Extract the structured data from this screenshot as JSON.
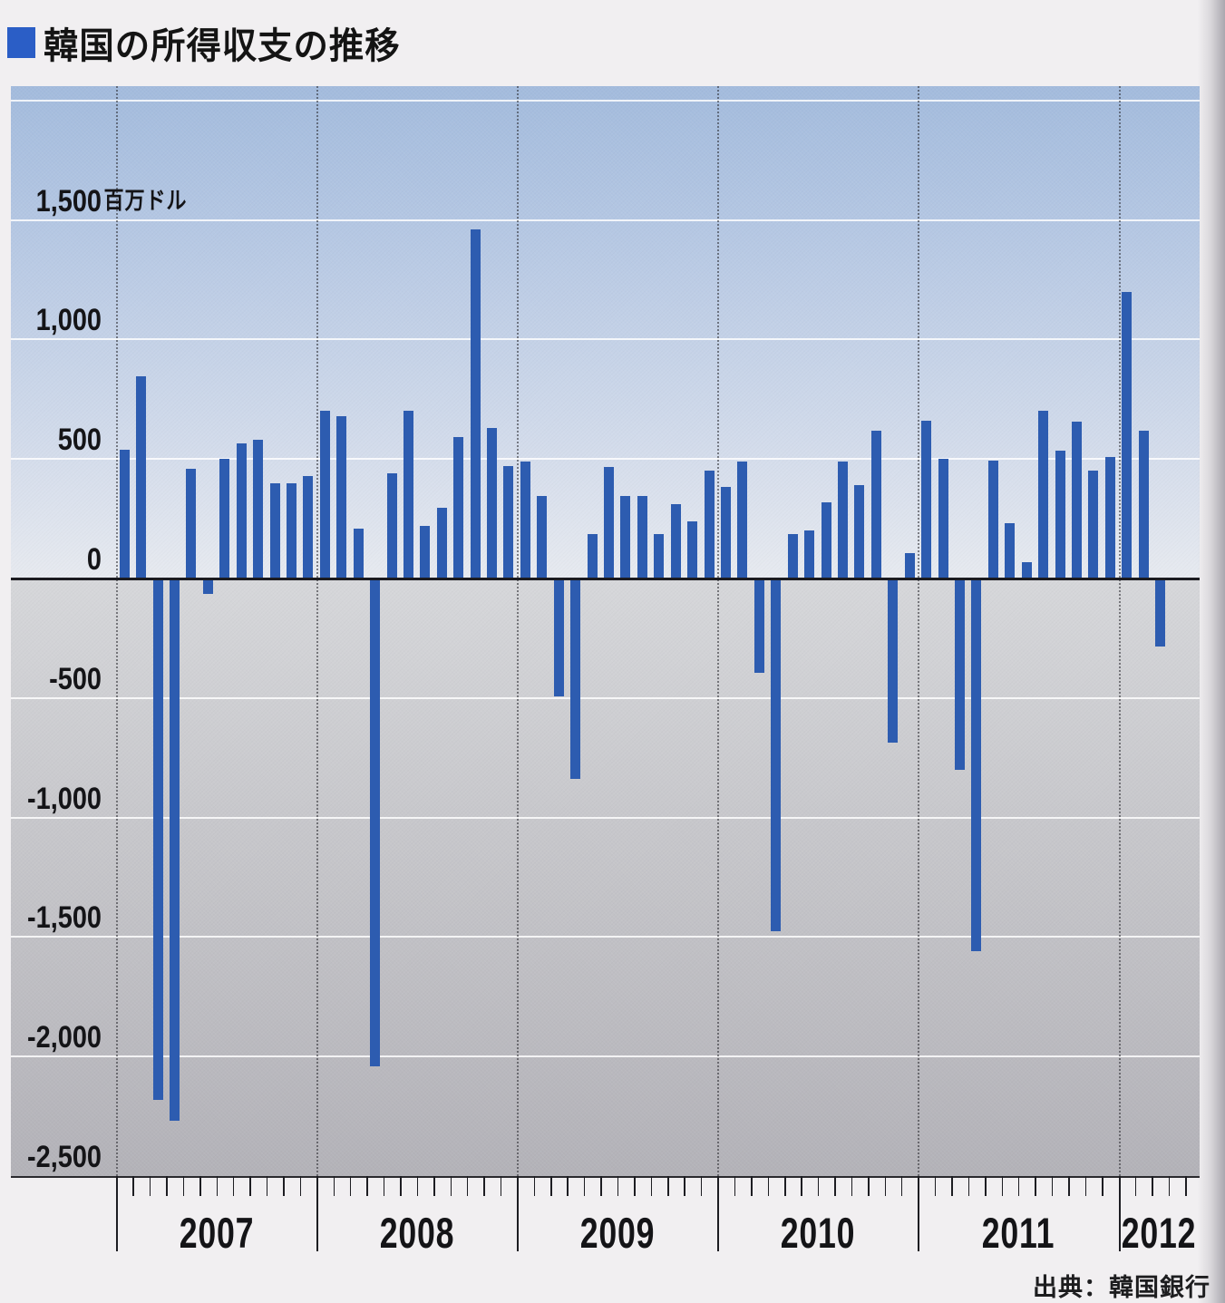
{
  "header": {
    "title": "韓国の所得収支の推移"
  },
  "footer": {
    "source": "出典：韓国銀行"
  },
  "chart_data": {
    "type": "bar",
    "title": "韓国の所得収支の推移",
    "unit": "百万ドル",
    "source": "出典：韓国銀行",
    "bar_color": "#2d5cb0",
    "title_bullet_color": "#2b5ec6",
    "grid_on": true,
    "y_axis": {
      "min": -2500,
      "max_label": 1500,
      "step": 500,
      "gridline_values": [
        2000,
        1500,
        1000,
        500,
        -500,
        -1000,
        -1500,
        -2000
      ],
      "labels": [
        {
          "value": 1500,
          "label": "1,500",
          "suffix": "百万ドル"
        },
        {
          "value": 1000,
          "label": "1,000"
        },
        {
          "value": 500,
          "label": "500"
        },
        {
          "value": 0,
          "label": "0"
        },
        {
          "value": -500,
          "label": "-500"
        },
        {
          "value": -1000,
          "label": "-1,000"
        },
        {
          "value": -1500,
          "label": "-1,500"
        },
        {
          "value": -2000,
          "label": "-2,000"
        }
      ],
      "bottom_label": "-2,500"
    },
    "x_axis": {
      "year_labels": [
        "2007",
        "2008",
        "2009",
        "2010",
        "2011",
        "2012"
      ]
    },
    "series": [
      {
        "year": "2007",
        "values": [
          540,
          845,
          -2180,
          -2270,
          460,
          -65,
          500,
          565,
          580,
          400,
          400,
          430
        ]
      },
      {
        "year": "2008",
        "values": [
          700,
          680,
          210,
          -2040,
          440,
          700,
          220,
          295,
          590,
          1460,
          630,
          470
        ]
      },
      {
        "year": "2009",
        "values": [
          490,
          345,
          -495,
          -840,
          185,
          465,
          345,
          345,
          185,
          310,
          240,
          450
        ]
      },
      {
        "year": "2010",
        "values": [
          385,
          490,
          -395,
          -1475,
          185,
          200,
          320,
          490,
          390,
          620,
          -685,
          105
        ]
      },
      {
        "year": "2011",
        "values": [
          660,
          500,
          -800,
          -1560,
          495,
          230,
          70,
          700,
          535,
          655,
          450,
          510
        ]
      },
      {
        "year": "2012",
        "values": [
          1200,
          620,
          -285
        ]
      }
    ]
  }
}
